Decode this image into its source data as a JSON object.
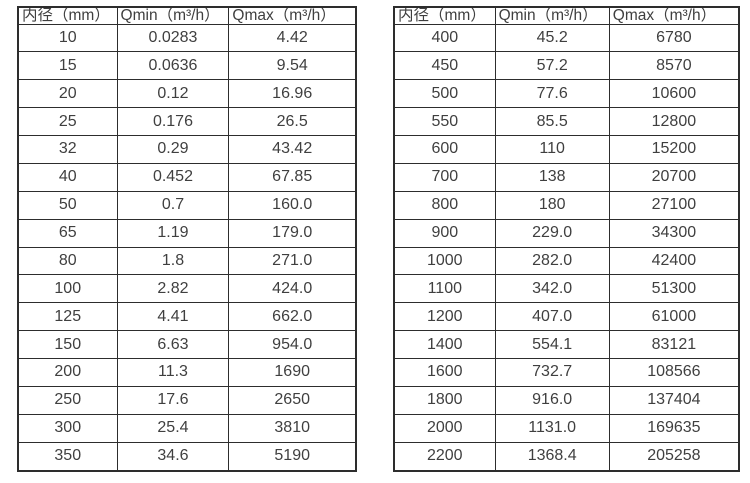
{
  "tables": [
    {
      "name": "flow-spec-small-diameters",
      "headers": [
        "内径（mm）",
        "Qmin（m³/h）",
        "Qmax（m³/h）"
      ],
      "rows": [
        [
          "10",
          "0.0283",
          "4.42"
        ],
        [
          "15",
          "0.0636",
          "9.54"
        ],
        [
          "20",
          "0.12",
          "16.96"
        ],
        [
          "25",
          "0.176",
          "26.5"
        ],
        [
          "32",
          "0.29",
          "43.42"
        ],
        [
          "40",
          "0.452",
          "67.85"
        ],
        [
          "50",
          "0.7",
          "160.0"
        ],
        [
          "65",
          "1.19",
          "179.0"
        ],
        [
          "80",
          "1.8",
          "271.0"
        ],
        [
          "100",
          "2.82",
          "424.0"
        ],
        [
          "125",
          "4.41",
          "662.0"
        ],
        [
          "150",
          "6.63",
          "954.0"
        ],
        [
          "200",
          "11.3",
          "1690"
        ],
        [
          "250",
          "17.6",
          "2650"
        ],
        [
          "300",
          "25.4",
          "3810"
        ],
        [
          "350",
          "34.6",
          "5190"
        ]
      ]
    },
    {
      "name": "flow-spec-large-diameters",
      "headers": [
        "内径（mm）",
        "Qmin（m³/h）",
        "Qmax（m³/h）"
      ],
      "rows": [
        [
          "400",
          "45.2",
          "6780"
        ],
        [
          "450",
          "57.2",
          "8570"
        ],
        [
          "500",
          "77.6",
          "10600"
        ],
        [
          "550",
          "85.5",
          "12800"
        ],
        [
          "600",
          "110",
          "15200"
        ],
        [
          "700",
          "138",
          "20700"
        ],
        [
          "800",
          "180",
          "27100"
        ],
        [
          "900",
          "229.0",
          "34300"
        ],
        [
          "1000",
          "282.0",
          "42400"
        ],
        [
          "1100",
          "342.0",
          "51300"
        ],
        [
          "1200",
          "407.0",
          "61000"
        ],
        [
          "1400",
          "554.1",
          "83121"
        ],
        [
          "1600",
          "732.7",
          "108566"
        ],
        [
          "1800",
          "916.0",
          "137404"
        ],
        [
          "2000",
          "1131.0",
          "169635"
        ],
        [
          "2200",
          "1368.4",
          "205258"
        ]
      ]
    }
  ],
  "colors": {
    "border": "#2d2d2d",
    "text": "#3f3f3f",
    "background": "#ffffff"
  }
}
